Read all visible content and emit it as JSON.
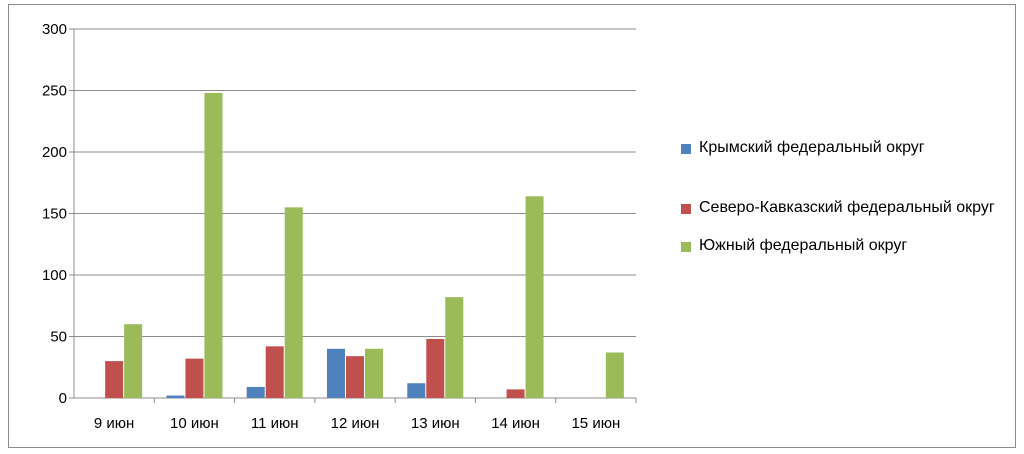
{
  "chart_data": {
    "type": "bar",
    "categories": [
      "9 июн",
      "10 июн",
      "11 июн",
      "12 июн",
      "13 июн",
      "14 июн",
      "15 июн"
    ],
    "series": [
      {
        "name": "Крымский федеральный округ",
        "color": "#4f81bd",
        "values": [
          0,
          2,
          9,
          40,
          12,
          0,
          0
        ]
      },
      {
        "name": "Северо-Кавказский федеральный округ",
        "color": "#c0504d",
        "values": [
          30,
          32,
          42,
          34,
          48,
          7,
          0
        ]
      },
      {
        "name": "Южный федеральный округ",
        "color": "#9bbb59",
        "values": [
          60,
          248,
          155,
          40,
          82,
          164,
          37
        ]
      }
    ],
    "yticks": [
      "0",
      "50",
      "100",
      "150",
      "200",
      "250",
      "300"
    ],
    "ylim": [
      0,
      300
    ],
    "grid": true,
    "legend": "right"
  }
}
